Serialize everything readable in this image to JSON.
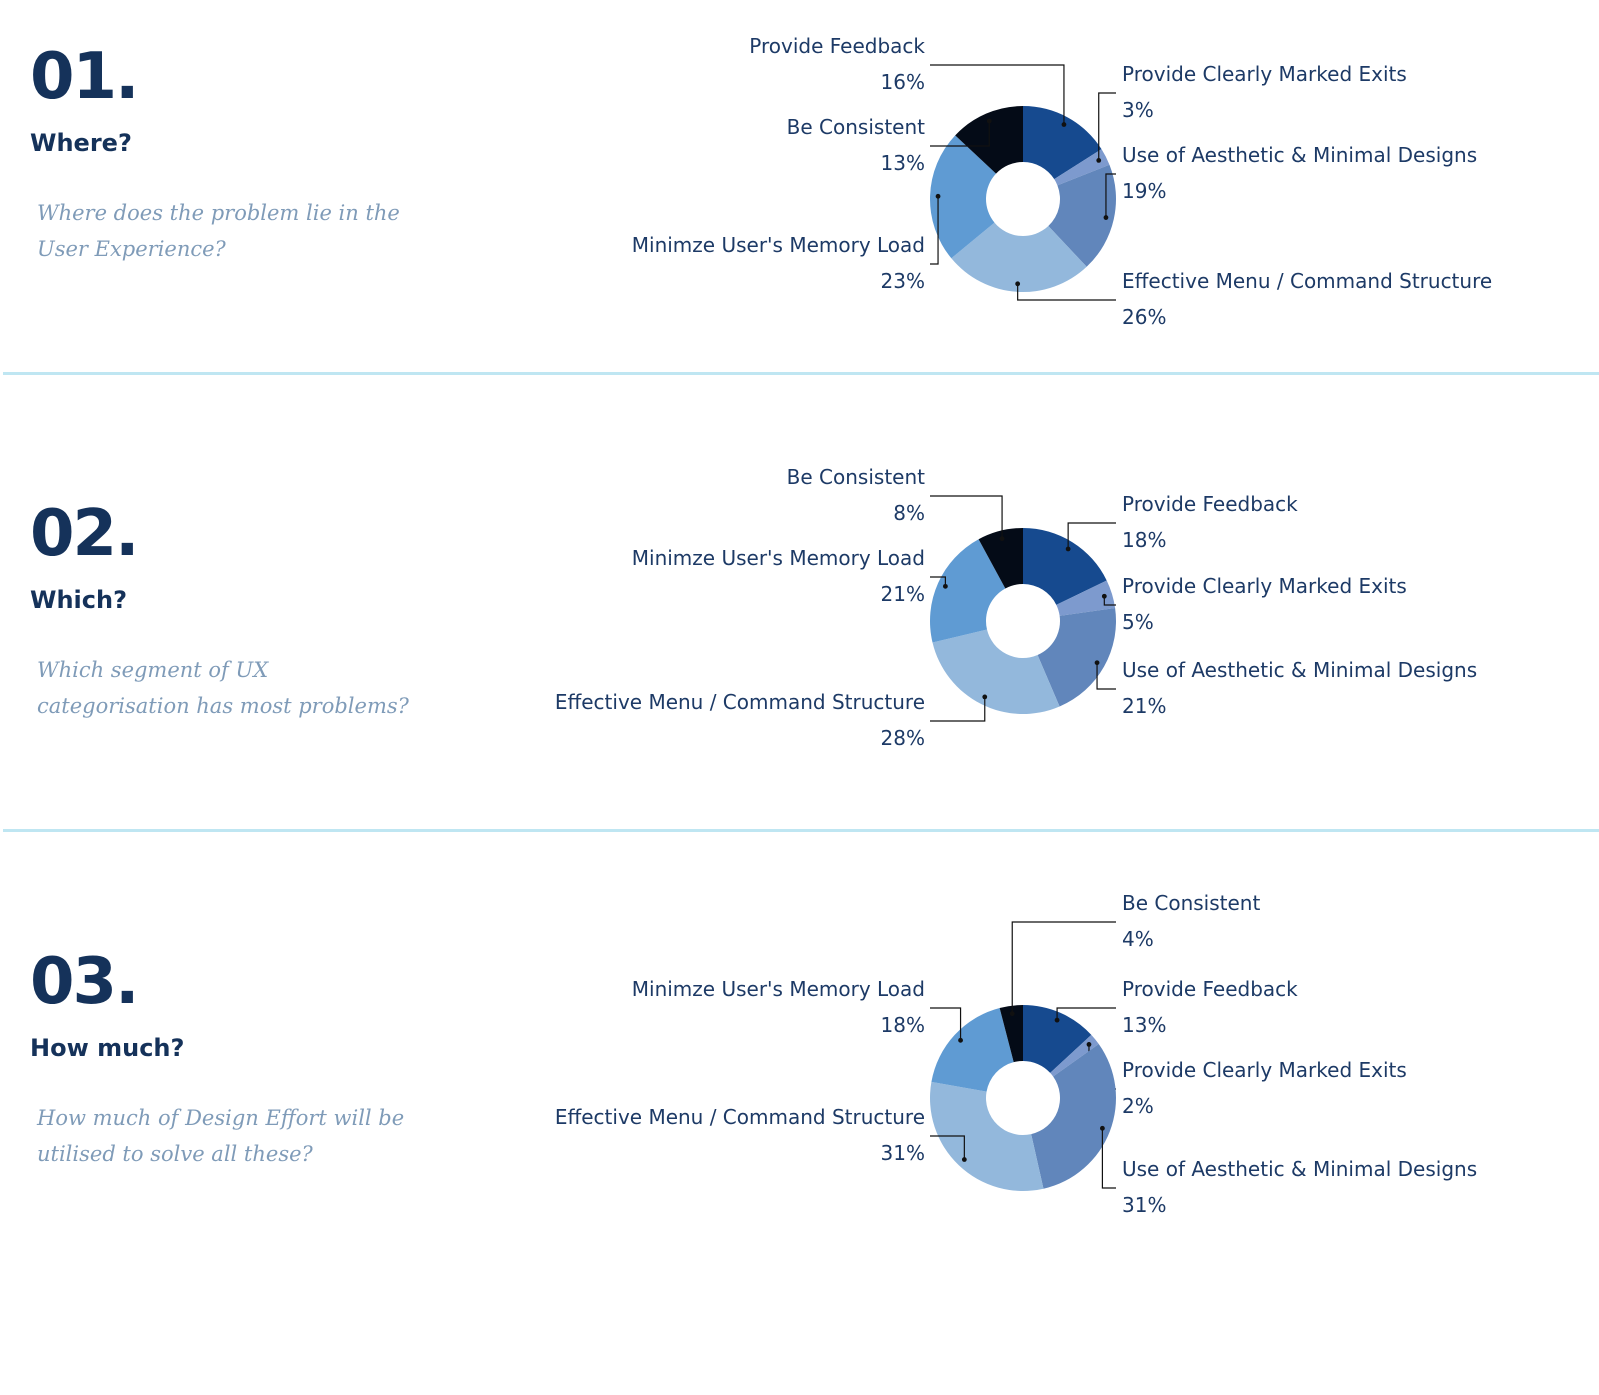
{
  "sections": [
    {
      "number": "01.",
      "question": "Where?",
      "description": "Where does the problem lie in the User Experience?"
    },
    {
      "number": "02.",
      "question": "Which?",
      "description": "Which segment of UX categorisation has most problems?"
    },
    {
      "number": "03.",
      "question": "How much?",
      "description": "How much of Design Effort will be utilised to solve all these?"
    }
  ],
  "colors": {
    "Provide Feedback": "#164a8f",
    "Provide Clearly Marked Exits": "#7d9ace",
    "Use of Aesthetic & Minimal Designs": "#6186bb",
    "Effective Menu / Command Structure": "#93b8dc",
    "Minimze User's Memory Load": "#5f9bd3",
    "Be Consistent": "#040b17"
  },
  "chart_data": [
    {
      "type": "pie",
      "slices": [
        {
          "label": "Provide Feedback",
          "value": 16,
          "value_label": "16%"
        },
        {
          "label": "Provide Clearly Marked Exits",
          "value": 3,
          "value_label": "3%"
        },
        {
          "label": "Use of Aesthetic & Minimal Designs",
          "value": 19,
          "value_label": "19%"
        },
        {
          "label": "Effective Menu / Command Structure",
          "value": 26,
          "value_label": "26%"
        },
        {
          "label": "Minimze User's Memory Load",
          "value": 23,
          "value_label": "23%"
        },
        {
          "label": "Be Consistent",
          "value": 13,
          "value_label": "13%"
        }
      ]
    },
    {
      "type": "pie",
      "slices": [
        {
          "label": "Provide Feedback",
          "value": 18,
          "value_label": "18%"
        },
        {
          "label": "Provide Clearly Marked Exits",
          "value": 5,
          "value_label": "5%"
        },
        {
          "label": "Use of Aesthetic & Minimal Designs",
          "value": 21,
          "value_label": "21%"
        },
        {
          "label": "Effective Menu / Command Structure",
          "value": 28,
          "value_label": "28%"
        },
        {
          "label": "Minimze User's Memory Load",
          "value": 21,
          "value_label": "21%"
        },
        {
          "label": "Be Consistent",
          "value": 8,
          "value_label": "8%"
        }
      ]
    },
    {
      "type": "pie",
      "slices": [
        {
          "label": "Provide Feedback",
          "value": 13,
          "value_label": "13%"
        },
        {
          "label": "Provide Clearly Marked Exits",
          "value": 2,
          "value_label": "2%"
        },
        {
          "label": "Use of Aesthetic & Minimal Designs",
          "value": 31,
          "value_label": "31%"
        },
        {
          "label": "Effective Menu / Command Structure",
          "value": 31,
          "value_label": "31%"
        },
        {
          "label": "Minimze User's Memory Load",
          "value": 18,
          "value_label": "18%"
        },
        {
          "label": "Be Consistent",
          "value": 4,
          "value_label": "4%"
        }
      ]
    }
  ]
}
